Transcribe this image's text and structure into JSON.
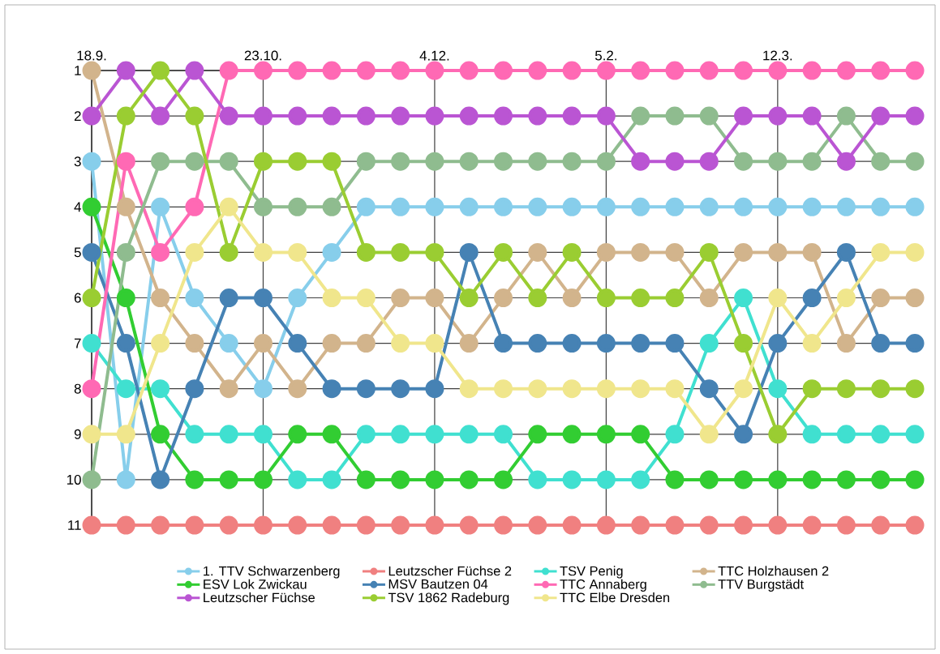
{
  "chart_data": {
    "type": "line",
    "categories": [
      "18.9.",
      null,
      null,
      null,
      null,
      "23.10.",
      null,
      null,
      null,
      null,
      "4.12.",
      null,
      null,
      null,
      null,
      "5.2.",
      null,
      null,
      null,
      null,
      "12.3.",
      null,
      null,
      null,
      null
    ],
    "ylim": [
      11,
      1
    ],
    "yticks": [
      1,
      2,
      3,
      4,
      5,
      6,
      7,
      8,
      9,
      10,
      11
    ],
    "grid": true,
    "legend": "bottom",
    "marker": "circle",
    "line_style": "solid",
    "series": [
      {
        "name": "1. TTV Schwarzenberg",
        "color": "#87ceeb",
        "values": [
          3,
          10,
          4,
          6,
          7,
          8,
          6,
          5,
          4,
          4,
          4,
          4,
          4,
          4,
          4,
          4,
          4,
          4,
          4,
          4,
          4,
          4,
          4,
          4,
          4
        ]
      },
      {
        "name": "Leutzscher Füchse 2",
        "color": "#f08080",
        "values": [
          11,
          11,
          11,
          11,
          11,
          11,
          11,
          11,
          11,
          11,
          11,
          11,
          11,
          11,
          11,
          11,
          11,
          11,
          11,
          11,
          11,
          11,
          11,
          11,
          11
        ]
      },
      {
        "name": "TSV Penig",
        "color": "#40e0d0",
        "values": [
          7,
          8,
          8,
          9,
          9,
          9,
          10,
          10,
          9,
          9,
          9,
          9,
          9,
          10,
          10,
          10,
          10,
          9,
          7,
          6,
          8,
          9,
          9,
          9,
          9
        ]
      },
      {
        "name": "TTC Holzhausen 2",
        "color": "#d2b48c",
        "values": [
          1,
          4,
          6,
          7,
          8,
          7,
          8,
          7,
          7,
          6,
          6,
          7,
          6,
          5,
          6,
          5,
          5,
          5,
          6,
          5,
          5,
          5,
          7,
          6,
          6
        ]
      },
      {
        "name": "ESV Lok Zwickau",
        "color": "#32cd32",
        "values": [
          4,
          6,
          9,
          10,
          10,
          10,
          9,
          9,
          10,
          10,
          10,
          10,
          10,
          9,
          9,
          9,
          9,
          10,
          10,
          10,
          10,
          10,
          10,
          10,
          10
        ]
      },
      {
        "name": "MSV Bautzen 04",
        "color": "#4682b4",
        "values": [
          5,
          7,
          10,
          8,
          6,
          6,
          7,
          8,
          8,
          8,
          8,
          5,
          7,
          7,
          7,
          7,
          7,
          7,
          8,
          9,
          7,
          6,
          5,
          7,
          7
        ]
      },
      {
        "name": "TTC Annaberg",
        "color": "#ff69b4",
        "values": [
          8,
          3,
          5,
          4,
          1,
          1,
          1,
          1,
          1,
          1,
          1,
          1,
          1,
          1,
          1,
          1,
          1,
          1,
          1,
          1,
          1,
          1,
          1,
          1,
          1
        ]
      },
      {
        "name": "TTV Burgstädt",
        "color": "#8fbc8f",
        "values": [
          10,
          5,
          3,
          3,
          3,
          4,
          4,
          4,
          3,
          3,
          3,
          3,
          3,
          3,
          3,
          3,
          2,
          2,
          2,
          3,
          3,
          3,
          2,
          3,
          3
        ]
      },
      {
        "name": "Leutzscher Füchse",
        "color": "#ba55d3",
        "values": [
          2,
          1,
          2,
          1,
          2,
          2,
          2,
          2,
          2,
          2,
          2,
          2,
          2,
          2,
          2,
          2,
          3,
          3,
          3,
          2,
          2,
          2,
          3,
          2,
          2
        ]
      },
      {
        "name": "TSV 1862 Radeburg",
        "color": "#9acd32",
        "values": [
          6,
          2,
          1,
          2,
          5,
          3,
          3,
          3,
          5,
          5,
          5,
          6,
          5,
          6,
          5,
          6,
          6,
          6,
          5,
          7,
          9,
          8,
          8,
          8,
          8
        ]
      },
      {
        "name": "TTC Elbe Dresden",
        "color": "#f0e68c",
        "values": [
          9,
          9,
          7,
          5,
          4,
          5,
          5,
          6,
          6,
          7,
          7,
          8,
          8,
          8,
          8,
          8,
          8,
          8,
          9,
          8,
          6,
          7,
          6,
          5,
          5
        ]
      }
    ]
  }
}
